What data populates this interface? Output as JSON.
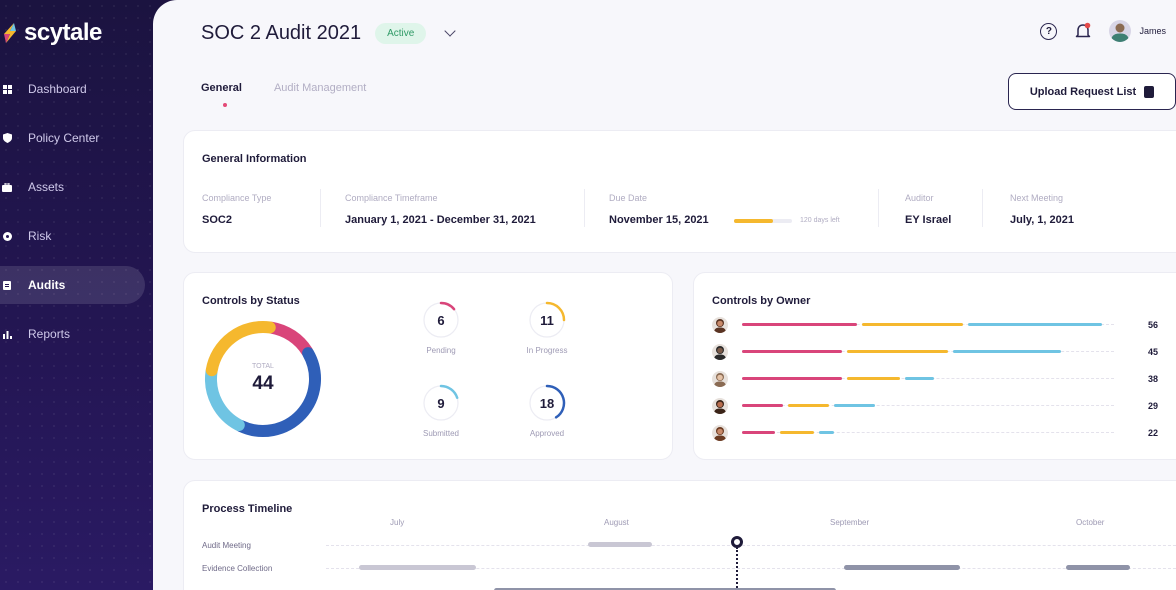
{
  "brand": {
    "name": "scytale"
  },
  "sidebar": {
    "items": [
      {
        "label": "Dashboard",
        "icon": "grid-icon"
      },
      {
        "label": "Policy Center",
        "icon": "shield-icon"
      },
      {
        "label": "Assets",
        "icon": "briefcase-icon"
      },
      {
        "label": "Risk",
        "icon": "risk-icon"
      },
      {
        "label": "Audits",
        "icon": "clipboard-icon",
        "active": true
      },
      {
        "label": "Reports",
        "icon": "bar-chart-icon"
      }
    ]
  },
  "header": {
    "title": "SOC 2 Audit 2021",
    "status": "Active",
    "user_name": "James",
    "colors": {
      "status_bg": "#dff5ea",
      "status_text": "#2f9a66"
    }
  },
  "tabs": [
    {
      "label": "General",
      "active": true
    },
    {
      "label": "Audit Management",
      "active": false
    }
  ],
  "actions": {
    "upload_label": "Upload Request List"
  },
  "general_info": {
    "title": "General Information",
    "fields": [
      {
        "label": "Compliance Type",
        "value": "SOC2"
      },
      {
        "label": "Compliance Timeframe",
        "value": "January 1, 2021 - December 31, 2021"
      },
      {
        "label": "Due Date",
        "value": "November 15, 2021"
      },
      {
        "label": "Auditor",
        "value": "EY Israel"
      },
      {
        "label": "Next Meeting",
        "value": "July, 1, 2021"
      }
    ],
    "days_left": "120 days left",
    "due_progress": 0.68
  },
  "controls_by_status": {
    "title": "Controls by Status",
    "total_label": "TOTAL",
    "total": "44",
    "stats": [
      {
        "label": "Pending",
        "value": "6",
        "color": "#d9457a",
        "fraction": 0.14
      },
      {
        "label": "In Progress",
        "value": "11",
        "color": "#f5b82e",
        "fraction": 0.25
      },
      {
        "label": "Submitted",
        "value": "9",
        "color": "#6fc4e3",
        "fraction": 0.2
      },
      {
        "label": "Approved",
        "value": "18",
        "color": "#2f5fb8",
        "fraction": 0.41
      }
    ]
  },
  "controls_by_owner": {
    "title": "Controls by Owner",
    "colors": [
      "#d9457a",
      "#f5b82e",
      "#6fc4e3"
    ],
    "owners": [
      {
        "count": "56",
        "segments": [
          0.31,
          0.27,
          0.36
        ]
      },
      {
        "count": "45",
        "segments": [
          0.27,
          0.27,
          0.29
        ]
      },
      {
        "count": "38",
        "segments": [
          0.27,
          0.14,
          0.08
        ]
      },
      {
        "count": "29",
        "segments": [
          0.11,
          0.11,
          0.11
        ]
      },
      {
        "count": "22",
        "segments": [
          0.09,
          0.09,
          0.04
        ]
      }
    ]
  },
  "timeline": {
    "title": "Process Timeline",
    "months": [
      "July",
      "August",
      "September",
      "October"
    ],
    "rows": [
      {
        "label": "Audit Meeting"
      },
      {
        "label": "Evidence Collection"
      }
    ]
  }
}
